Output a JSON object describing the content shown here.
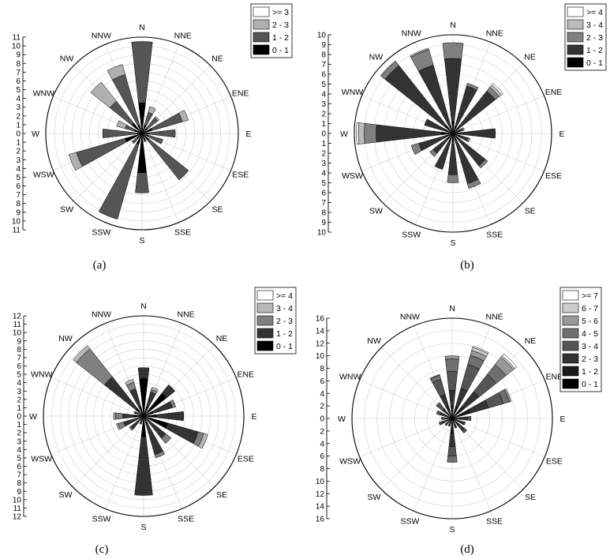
{
  "directions": [
    "N",
    "NNE",
    "NE",
    "ENE",
    "E",
    "ESE",
    "SE",
    "SSE",
    "S",
    "SSW",
    "SW",
    "WSW",
    "W",
    "WNW",
    "NW",
    "NNW"
  ],
  "chart_data": [
    {
      "type": "windrose",
      "caption": "(a)",
      "rmax": 11,
      "grid_step": 1,
      "legend": [
        "0 - 1",
        "1 - 2",
        "2 - 3",
        ">= 3"
      ],
      "colors": [
        "#000000",
        "#555555",
        "#b0b0b0",
        "#ffffff"
      ],
      "bins": [
        [
          3.5,
          10.5,
          10.5,
          10.5
        ],
        [
          1.0,
          2.5,
          3.2,
          3.2
        ],
        [
          0.8,
          2.3,
          2.5,
          2.5
        ],
        [
          1.2,
          4.8,
          5.5,
          5.5
        ],
        [
          0.8,
          3.8,
          3.8,
          3.8
        ],
        [
          0.8,
          2.4,
          2.5,
          2.5
        ],
        [
          1.0,
          6.8,
          6.8,
          6.8
        ],
        [
          0.8,
          1.0,
          1.0,
          1.0
        ],
        [
          4.5,
          6.8,
          6.8,
          6.8
        ],
        [
          1.3,
          10.2,
          10.2,
          10.2
        ],
        [
          0.8,
          1.4,
          1.5,
          1.5
        ],
        [
          2.0,
          7.8,
          8.7,
          8.7
        ],
        [
          0.5,
          4.5,
          4.5,
          4.5
        ],
        [
          0.9,
          2.0,
          3.0,
          3.0
        ],
        [
          1.5,
          4.7,
          7.5,
          7.5
        ],
        [
          1.0,
          7.0,
          8.2,
          8.2
        ]
      ]
    },
    {
      "type": "windrose",
      "caption": "(b)",
      "rmax": 10,
      "grid_step": 1,
      "legend": [
        "0 - 1",
        "1 - 2",
        "2 - 3",
        "3 - 4",
        ">= 4"
      ],
      "colors": [
        "#000000",
        "#333333",
        "#808080",
        "#bbbbbb",
        "#ffffff"
      ],
      "bins": [
        [
          1.2,
          7.6,
          9.2,
          9.2,
          9.2
        ],
        [
          0.8,
          5.0,
          5.3,
          5.3,
          5.3
        ],
        [
          0.8,
          5.5,
          6.0,
          6.3,
          6.5
        ],
        [
          0.8,
          1.0,
          1.2,
          1.2,
          1.2
        ],
        [
          0.8,
          4.3,
          4.3,
          4.3,
          4.3
        ],
        [
          0.8,
          1.6,
          1.8,
          1.8,
          1.8
        ],
        [
          0.8,
          4.2,
          4.5,
          4.5,
          4.5
        ],
        [
          0.8,
          5.3,
          5.8,
          5.8,
          5.8
        ],
        [
          0.8,
          4.2,
          5.0,
          5.0,
          5.0
        ],
        [
          0.8,
          3.8,
          3.8,
          3.8,
          3.8
        ],
        [
          0.8,
          2.6,
          3.0,
          3.0,
          3.0
        ],
        [
          0.8,
          3.6,
          4.4,
          4.4,
          4.4
        ],
        [
          1.2,
          7.8,
          9.0,
          9.6,
          9.8
        ],
        [
          0.8,
          3.0,
          3.0,
          3.0,
          3.0
        ],
        [
          1.0,
          8.8,
          9.3,
          9.4,
          9.4
        ],
        [
          0.8,
          7.2,
          8.8,
          8.9,
          9.0
        ]
      ]
    },
    {
      "type": "windrose",
      "caption": "(c)",
      "rmax": 12,
      "grid_step": 1,
      "legend": [
        "0 - 1",
        "1 - 2",
        "2 - 3",
        "3 - 4",
        ">= 4"
      ],
      "colors": [
        "#000000",
        "#333333",
        "#808080",
        "#b8b8b8",
        "#ffffff"
      ],
      "bins": [
        [
          4.5,
          5.8,
          5.8,
          5.8,
          5.8
        ],
        [
          1.2,
          3.0,
          3.3,
          3.6,
          3.6
        ],
        [
          3.5,
          4.8,
          4.8,
          4.8,
          4.8
        ],
        [
          1.2,
          3.6,
          4.0,
          4.0,
          4.0
        ],
        [
          1.5,
          4.8,
          4.8,
          4.8,
          4.8
        ],
        [
          3.0,
          6.8,
          7.5,
          8.0,
          8.0
        ],
        [
          0.8,
          3.4,
          4.2,
          4.2,
          4.2
        ],
        [
          1.0,
          4.8,
          5.2,
          5.2,
          5.2
        ],
        [
          2.5,
          9.5,
          9.5,
          9.5,
          9.5
        ],
        [
          0.6,
          1.0,
          1.0,
          1.0,
          1.0
        ],
        [
          0.6,
          2.0,
          2.2,
          2.2,
          2.2
        ],
        [
          0.5,
          2.5,
          3.2,
          3.4,
          3.4
        ],
        [
          1.2,
          2.5,
          3.4,
          3.6,
          3.6
        ],
        [
          0.5,
          1.2,
          1.2,
          1.2,
          1.2
        ],
        [
          1.2,
          6.0,
          10.3,
          10.8,
          10.8
        ],
        [
          1.2,
          3.4,
          4.2,
          4.6,
          4.6
        ]
      ]
    },
    {
      "type": "windrose",
      "caption": "(d)",
      "rmax": 16,
      "grid_step": 2,
      "legend": [
        "0 - 1",
        "1 - 2",
        "2 - 3",
        "3 - 4",
        "4 - 5",
        "5 - 6",
        "6 - 7",
        ">= 7"
      ],
      "colors": [
        "#000000",
        "#1a1a1a",
        "#333333",
        "#555555",
        "#6f6f6f",
        "#999999",
        "#cccccc",
        "#ffffff"
      ],
      "bins": [
        [
          0.5,
          2.0,
          4.5,
          7.5,
          9.5,
          10.0,
          10.0,
          10.0
        ],
        [
          0.5,
          2.0,
          5.0,
          9.0,
          10.5,
          11.3,
          11.8,
          12.0
        ],
        [
          0.5,
          2.5,
          5.5,
          9.0,
          11.0,
          12.5,
          12.8,
          13.2
        ],
        [
          0.5,
          3.0,
          6.0,
          8.5,
          9.5,
          9.8,
          9.8,
          9.8
        ],
        [
          0.5,
          1.5,
          2.5,
          3.0,
          3.0,
          3.0,
          3.0,
          3.0
        ],
        [
          0.3,
          1.0,
          2.0,
          2.2,
          2.2,
          2.2,
          2.2,
          2.2
        ],
        [
          0.5,
          1.5,
          2.5,
          3.0,
          3.0,
          3.0,
          3.0,
          3.0
        ],
        [
          0.3,
          1.0,
          1.5,
          1.6,
          1.6,
          1.6,
          1.6,
          1.6
        ],
        [
          0.5,
          2.5,
          4.5,
          6.0,
          7.0,
          7.0,
          7.0,
          7.0
        ],
        [
          0.3,
          0.8,
          1.2,
          1.3,
          1.3,
          1.3,
          1.3,
          1.3
        ],
        [
          0.3,
          0.8,
          1.3,
          1.5,
          1.5,
          1.5,
          1.5,
          1.5
        ],
        [
          0.3,
          1.0,
          1.8,
          2.2,
          2.2,
          2.2,
          2.2,
          2.2
        ],
        [
          0.3,
          0.8,
          1.5,
          1.7,
          1.7,
          1.7,
          1.7,
          1.7
        ],
        [
          0.3,
          1.0,
          2.0,
          2.6,
          2.6,
          2.6,
          2.6,
          2.6
        ],
        [
          0.3,
          1.0,
          2.0,
          3.0,
          3.3,
          3.3,
          3.3,
          3.3
        ],
        [
          0.5,
          2.0,
          4.0,
          6.5,
          7.2,
          7.3,
          7.3,
          7.3
        ]
      ]
    }
  ]
}
